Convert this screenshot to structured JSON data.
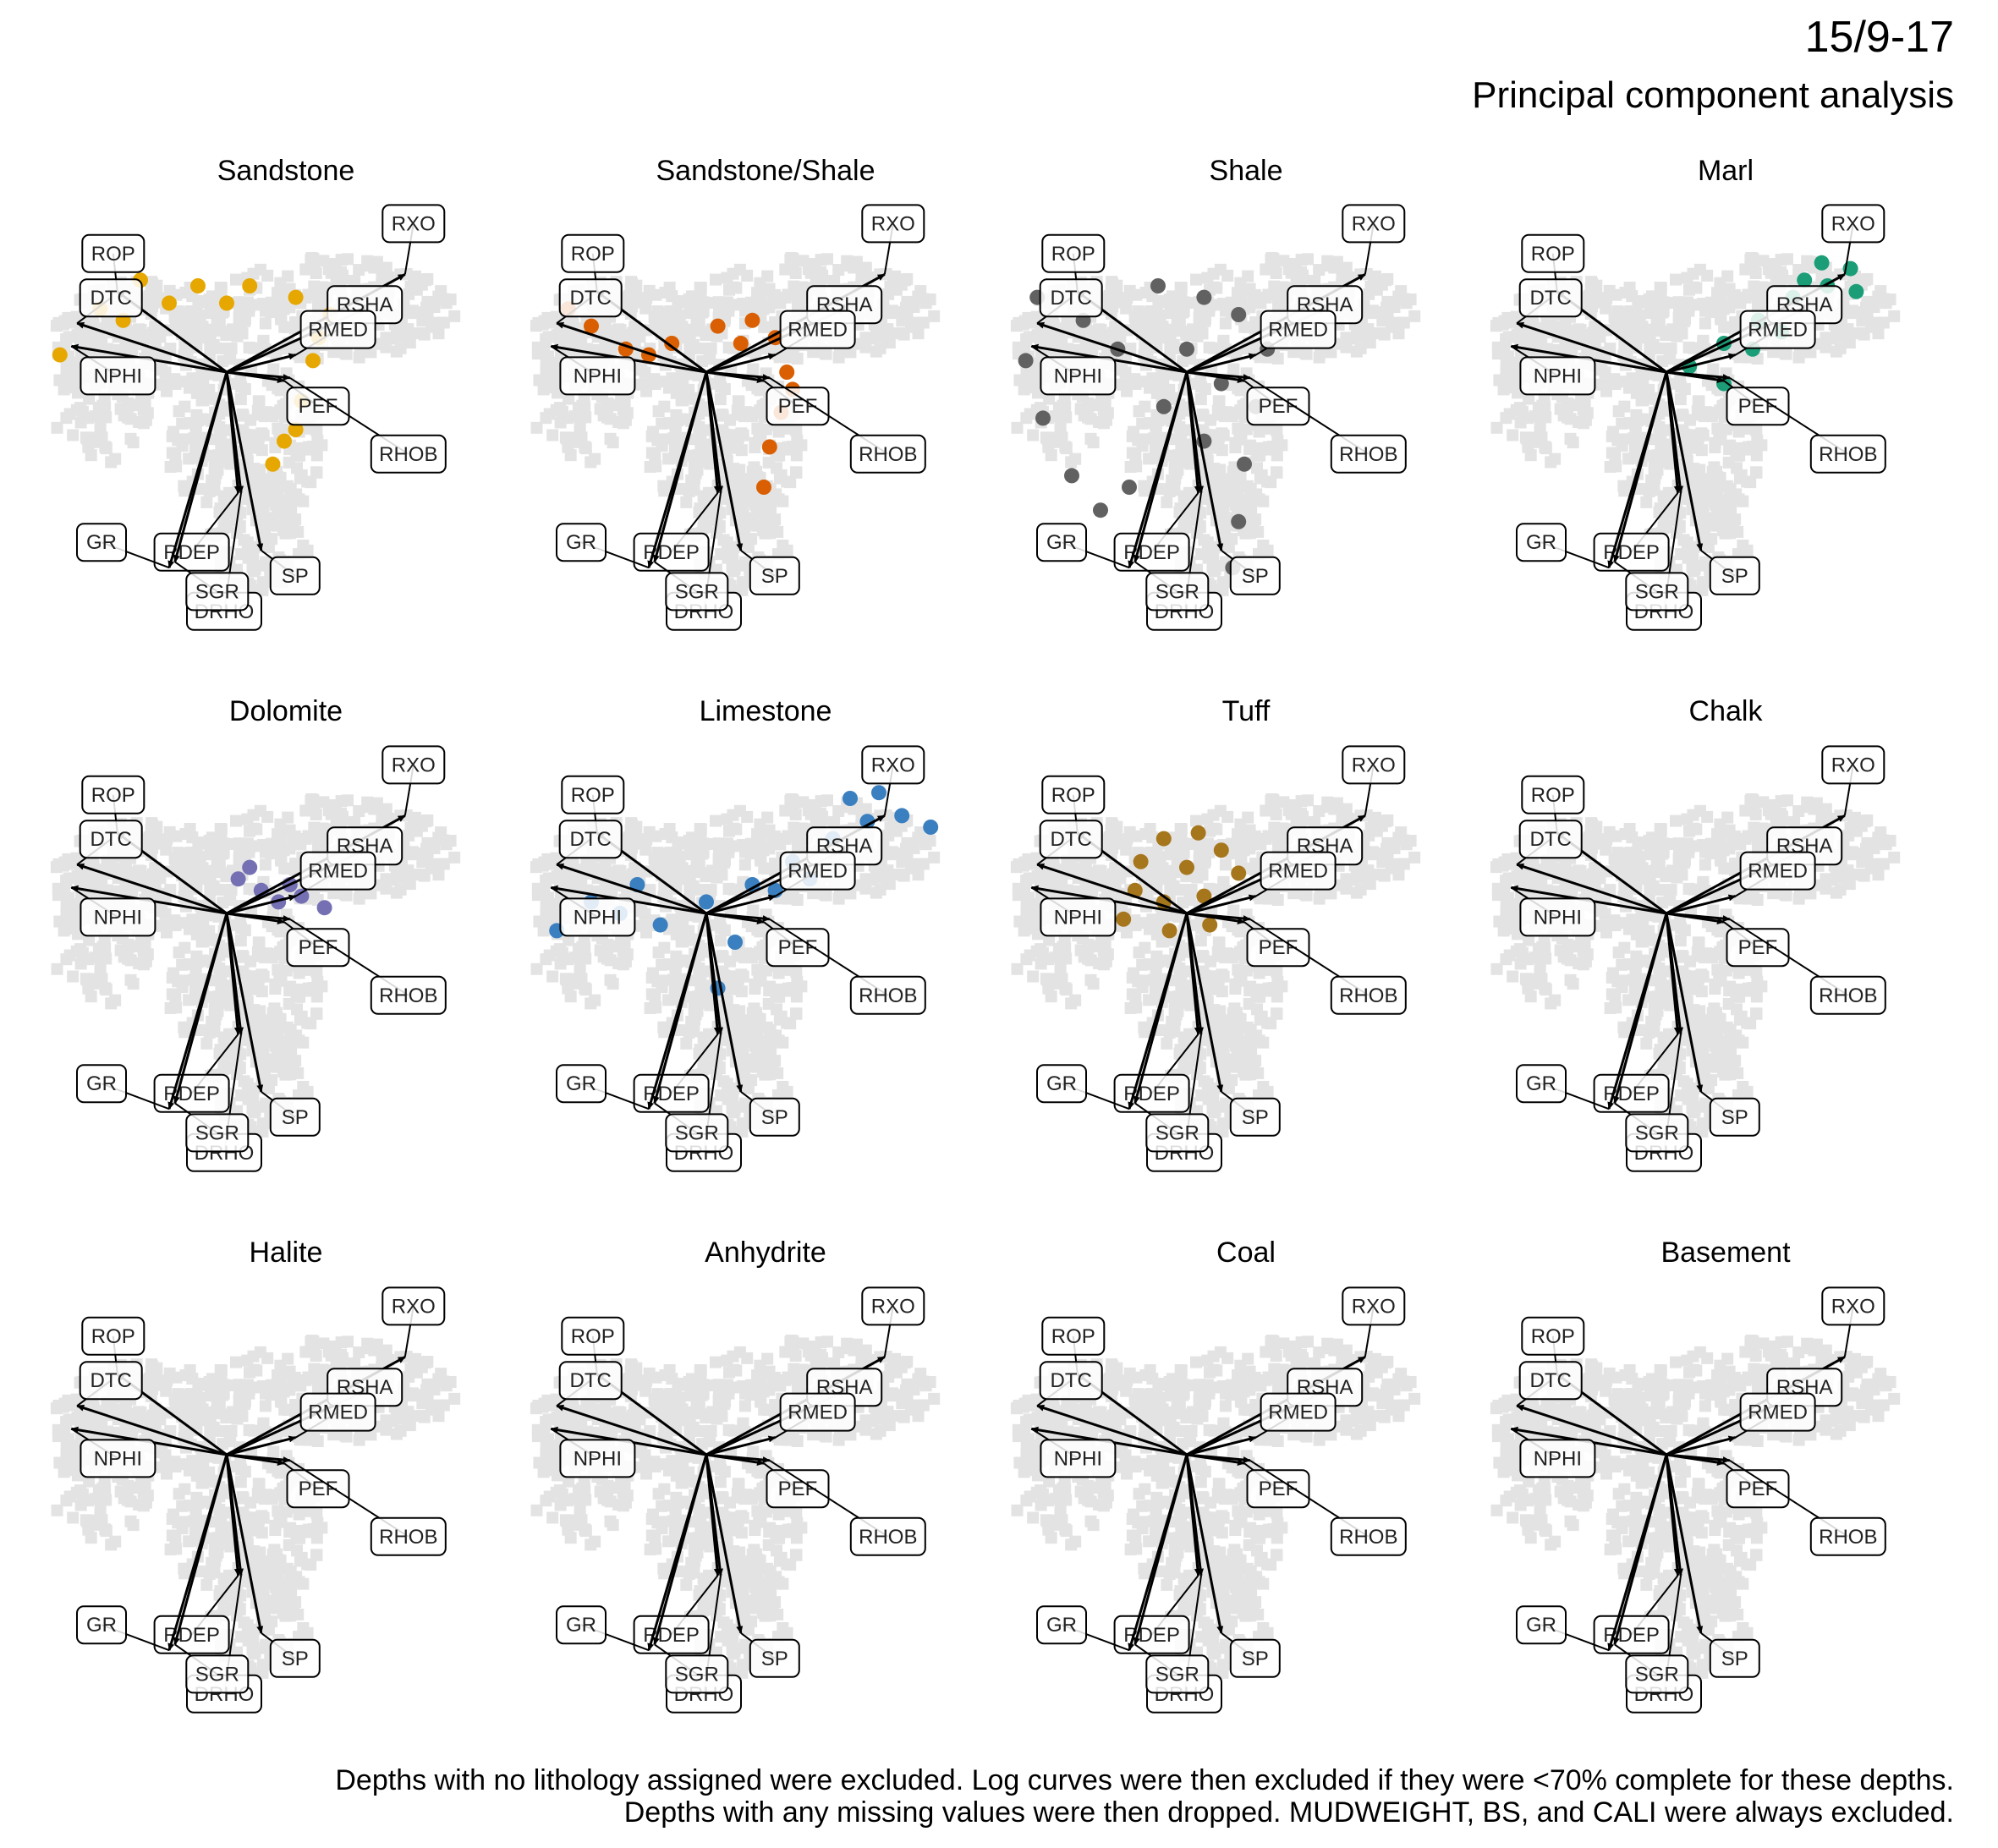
{
  "title": "15/9-17",
  "subtitle": "Principal component analysis",
  "caption": [
    "Depths with no lithology assigned were excluded. Log curves were then excluded if they were <70% complete for these depths.",
    "Depths with any missing values were then dropped. MUDWEIGHT, BS, and CALI were always excluded."
  ],
  "colors": {
    "background_cloud": "#e3e3e3",
    "arrow": "#000000",
    "label_border": "#000000"
  },
  "chart_data": {
    "type": "scatter",
    "title": "15/9-17 — Principal component analysis",
    "grid": false,
    "legend": "none",
    "facet_layout": "3 rows x 4 columns",
    "loadings": [
      {
        "name": "ROP",
        "x": -1.9,
        "y": 1.4
      },
      {
        "name": "DTC",
        "x": -2.6,
        "y": 0.85
      },
      {
        "name": "NPHI",
        "x": -2.7,
        "y": 0.45
      },
      {
        "name": "RXO",
        "x": 3.1,
        "y": 1.7
      },
      {
        "name": "RSHA",
        "x": 2.4,
        "y": 1.1
      },
      {
        "name": "RMED",
        "x": 1.2,
        "y": 0.3
      },
      {
        "name": "PEF",
        "x": 1.0,
        "y": -0.15
      },
      {
        "name": "RHOB",
        "x": 1.1,
        "y": -0.1
      },
      {
        "name": "RDEP",
        "x": 0.2,
        "y": -2.1
      },
      {
        "name": "DRHO",
        "x": 0.25,
        "y": -2.1
      },
      {
        "name": "SP",
        "x": 0.6,
        "y": -3.1
      },
      {
        "name": "GR",
        "x": -1.0,
        "y": -3.4
      },
      {
        "name": "SGR",
        "x": -0.9,
        "y": -3.3
      }
    ],
    "facets": [
      {
        "name": "Sandstone",
        "color": "#E6A700",
        "points": [
          [
            -2.9,
            0.3
          ],
          [
            -2.2,
            1.1
          ],
          [
            -1.5,
            1.6
          ],
          [
            -0.5,
            1.5
          ],
          [
            0.4,
            1.5
          ],
          [
            1.2,
            1.3
          ],
          [
            1.8,
            1.0
          ],
          [
            1.5,
            0.2
          ],
          [
            1.3,
            -0.5
          ],
          [
            1.2,
            -1.0
          ],
          [
            0.8,
            -1.6
          ],
          [
            1.0,
            -1.2
          ],
          [
            -1.0,
            1.2
          ],
          [
            0.0,
            1.2
          ],
          [
            -1.8,
            0.9
          ],
          [
            1.6,
            0.6
          ]
        ]
      },
      {
        "name": "Sandstone/Shale",
        "color": "#D95F02",
        "points": [
          [
            -2.4,
            1.1
          ],
          [
            -2.0,
            0.8
          ],
          [
            -1.4,
            0.4
          ],
          [
            -0.6,
            0.5
          ],
          [
            0.2,
            0.8
          ],
          [
            0.8,
            0.9
          ],
          [
            1.2,
            0.6
          ],
          [
            1.4,
            0.0
          ],
          [
            1.3,
            -0.7
          ],
          [
            1.1,
            -1.3
          ],
          [
            1.0,
            -2.0
          ],
          [
            1.5,
            -0.3
          ],
          [
            0.6,
            0.5
          ],
          [
            -1.0,
            0.3
          ]
        ]
      },
      {
        "name": "Shale",
        "color": "#616161",
        "points": [
          [
            -2.6,
            1.3
          ],
          [
            -2.8,
            0.2
          ],
          [
            -2.5,
            -0.8
          ],
          [
            -2.0,
            -1.8
          ],
          [
            -1.5,
            -2.4
          ],
          [
            -1.0,
            -2.0
          ],
          [
            -0.5,
            1.5
          ],
          [
            0.3,
            1.3
          ],
          [
            0.9,
            1.0
          ],
          [
            1.4,
            0.4
          ],
          [
            1.2,
            -0.6
          ],
          [
            1.0,
            -1.6
          ],
          [
            0.9,
            -2.6
          ],
          [
            0.8,
            -3.4
          ],
          [
            0.3,
            -1.2
          ],
          [
            -0.4,
            -0.6
          ],
          [
            -1.2,
            0.4
          ],
          [
            -1.8,
            0.9
          ],
          [
            0.0,
            0.4
          ],
          [
            0.6,
            -0.2
          ]
        ]
      },
      {
        "name": "Marl",
        "color": "#1B9E77",
        "points": [
          [
            0.4,
            0.1
          ],
          [
            1.0,
            0.5
          ],
          [
            1.6,
            0.9
          ],
          [
            2.2,
            1.3
          ],
          [
            2.8,
            1.5
          ],
          [
            3.2,
            1.8
          ],
          [
            3.3,
            1.4
          ],
          [
            2.7,
            1.9
          ],
          [
            1.5,
            0.4
          ],
          [
            1.0,
            -0.2
          ],
          [
            2.0,
            0.7
          ],
          [
            2.4,
            1.6
          ]
        ]
      },
      {
        "name": "Dolomite",
        "color": "#7570B3",
        "points": [
          [
            0.2,
            0.6
          ],
          [
            0.6,
            0.4
          ],
          [
            0.9,
            0.2
          ],
          [
            1.3,
            0.3
          ],
          [
            1.7,
            0.1
          ],
          [
            0.4,
            0.8
          ],
          [
            1.1,
            0.5
          ]
        ]
      },
      {
        "name": "Limestone",
        "color": "#3A7FBF",
        "points": [
          [
            -2.6,
            -0.3
          ],
          [
            -2.0,
            0.2
          ],
          [
            -1.5,
            0.0
          ],
          [
            -0.8,
            -0.2
          ],
          [
            0.0,
            0.2
          ],
          [
            0.8,
            0.5
          ],
          [
            1.5,
            0.9
          ],
          [
            2.2,
            1.3
          ],
          [
            2.8,
            1.6
          ],
          [
            3.4,
            1.7
          ],
          [
            3.9,
            1.5
          ],
          [
            2.5,
            2.0
          ],
          [
            3.0,
            2.1
          ],
          [
            0.5,
            -0.5
          ],
          [
            0.2,
            -1.3
          ],
          [
            1.2,
            0.4
          ],
          [
            -1.2,
            0.5
          ],
          [
            1.8,
            0.6
          ]
        ]
      },
      {
        "name": "Tuff",
        "color": "#A6761D",
        "points": [
          [
            -0.8,
            0.9
          ],
          [
            -0.4,
            1.3
          ],
          [
            0.2,
            1.4
          ],
          [
            0.6,
            1.1
          ],
          [
            0.9,
            0.7
          ],
          [
            0.3,
            0.3
          ],
          [
            -0.4,
            0.2
          ],
          [
            -0.9,
            0.4
          ],
          [
            -0.3,
            -0.3
          ],
          [
            0.4,
            -0.2
          ],
          [
            0.0,
            0.8
          ],
          [
            -1.1,
            -0.1
          ]
        ]
      },
      {
        "name": "Chalk",
        "color": "#E7298A",
        "points": []
      },
      {
        "name": "Halite",
        "color": "#66A61E",
        "points": []
      },
      {
        "name": "Anhydrite",
        "color": "#7F7F7F",
        "points": []
      },
      {
        "name": "Coal",
        "color": "#4D4D4D",
        "points": []
      },
      {
        "name": "Basement",
        "color": "#999999",
        "points": []
      }
    ]
  }
}
